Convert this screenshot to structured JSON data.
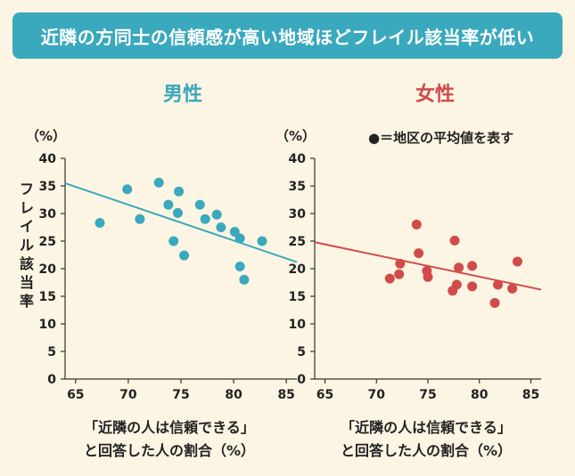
{
  "banner": {
    "title": "近隣の方同士の信頼感が高い地域ほどフレイル該当率が低い"
  },
  "colors": {
    "banner": "#3aa8bd",
    "male": "#3aa8bd",
    "female": "#d24a4a",
    "background": "#fdf5e3"
  },
  "legend": {
    "text": "●＝地区の平均値を表す"
  },
  "chart_data": [
    {
      "type": "scatter",
      "title": "男性",
      "color": "#3aa8bd",
      "unit_label": "（%）",
      "ylabel": "フレイル該当率",
      "xlabel_line1": "「近隣の人は信頼できる」",
      "xlabel_line2": "と回答した人の割合（%）",
      "xlim": [
        64,
        86
      ],
      "ylim": [
        0,
        40
      ],
      "xticks": [
        65,
        70,
        75,
        80,
        85
      ],
      "yticks": [
        0,
        5,
        10,
        15,
        20,
        25,
        30,
        35,
        40
      ],
      "points": [
        [
          67.3,
          28.3
        ],
        [
          69.9,
          34.4
        ],
        [
          71.1,
          29.0
        ],
        [
          72.9,
          35.6
        ],
        [
          73.8,
          31.6
        ],
        [
          74.3,
          25.0
        ],
        [
          74.8,
          34.0
        ],
        [
          74.7,
          30.1
        ],
        [
          75.3,
          22.4
        ],
        [
          76.8,
          31.6
        ],
        [
          77.3,
          29.0
        ],
        [
          78.4,
          29.8
        ],
        [
          78.8,
          27.5
        ],
        [
          80.1,
          26.7
        ],
        [
          80.6,
          25.5
        ],
        [
          80.6,
          20.4
        ],
        [
          81.0,
          18.0
        ],
        [
          82.7,
          25.0
        ]
      ],
      "trend": [
        [
          64,
          35.5
        ],
        [
          86,
          21.2
        ]
      ]
    },
    {
      "type": "scatter",
      "title": "女性",
      "color": "#d24a4a",
      "unit_label": "（%）",
      "ylabel": "",
      "xlabel_line1": "「近隣の人は信頼できる」",
      "xlabel_line2": "と回答した人の割合（%）",
      "xlim": [
        64,
        86
      ],
      "ylim": [
        0,
        40
      ],
      "xticks": [
        65,
        70,
        75,
        80,
        85
      ],
      "yticks": [
        0,
        5,
        10,
        15,
        20,
        25,
        30,
        35,
        40
      ],
      "points": [
        [
          71.3,
          18.2
        ],
        [
          72.2,
          19.0
        ],
        [
          72.3,
          20.9
        ],
        [
          73.9,
          28.0
        ],
        [
          74.1,
          22.8
        ],
        [
          74.9,
          19.6
        ],
        [
          75.0,
          18.5
        ],
        [
          77.4,
          16.0
        ],
        [
          77.6,
          25.1
        ],
        [
          77.8,
          17.1
        ],
        [
          78.0,
          20.2
        ],
        [
          79.3,
          20.5
        ],
        [
          79.3,
          16.8
        ],
        [
          81.5,
          13.8
        ],
        [
          81.8,
          17.1
        ],
        [
          83.2,
          16.4
        ],
        [
          83.7,
          21.3
        ]
      ],
      "trend": [
        [
          64,
          24.8
        ],
        [
          86,
          16.2
        ]
      ]
    }
  ]
}
